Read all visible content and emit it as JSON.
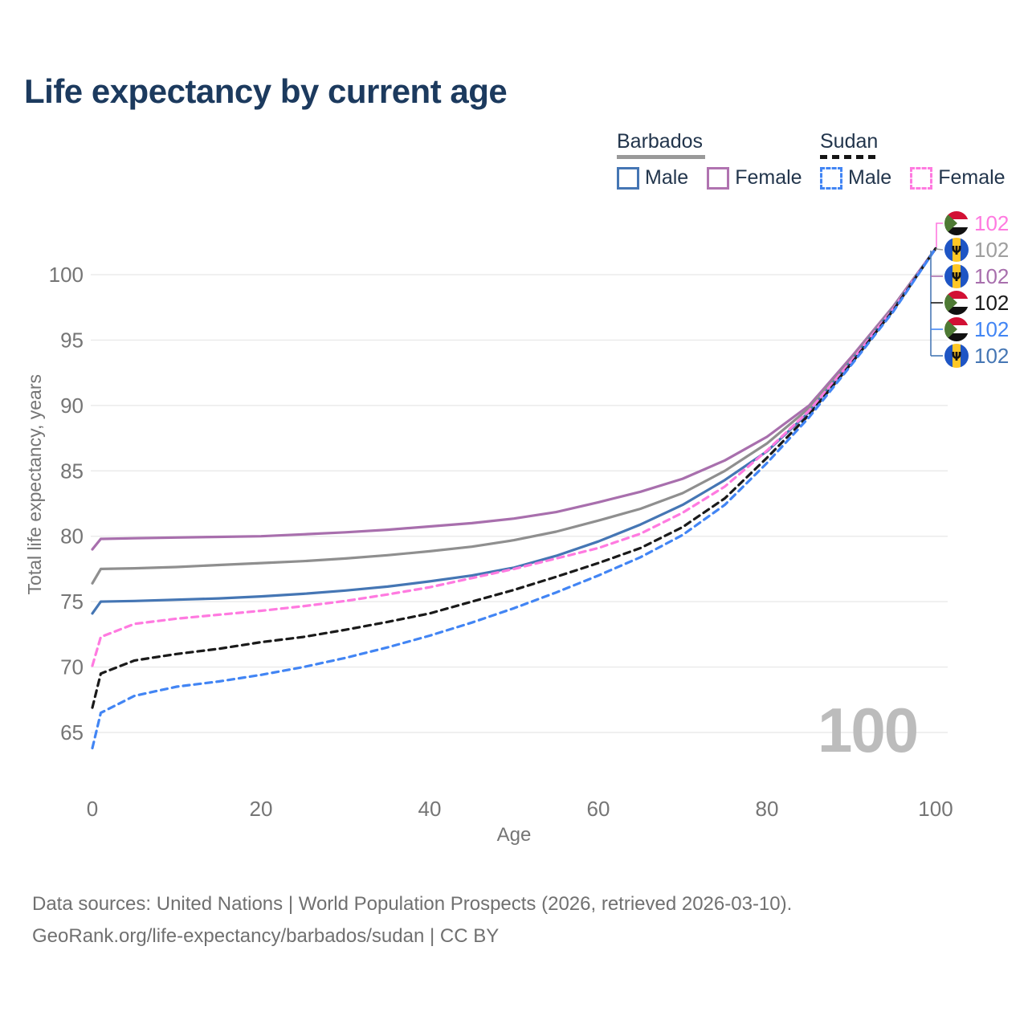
{
  "title": "Life expectancy by current age",
  "legend": {
    "groups": [
      {
        "label": "Barbados",
        "line_style": "solid",
        "underline_color": "#999999",
        "items": [
          {
            "label": "Male",
            "color": "#4576b4",
            "box_style": "solid"
          },
          {
            "label": "Female",
            "color": "#b073b0",
            "box_style": "solid"
          }
        ]
      },
      {
        "label": "Sudan",
        "line_style": "dashed",
        "underline_color": "#151515",
        "items": [
          {
            "label": "Male",
            "color": "#4285f4",
            "box_style": "dashed"
          },
          {
            "label": "Female",
            "color": "#ff7ae0",
            "box_style": "dashed"
          }
        ]
      }
    ]
  },
  "chart_data": {
    "type": "line",
    "title": "Life expectancy by current age",
    "xlabel": "Age",
    "ylabel": "Total life expectancy, years",
    "xlim": [
      0,
      100
    ],
    "ylim": [
      63,
      103
    ],
    "xticks": [
      0,
      20,
      40,
      60,
      80,
      100
    ],
    "yticks": [
      65,
      70,
      75,
      80,
      85,
      90,
      95,
      100
    ],
    "grid": "horizontal",
    "gridline_color": "#e7e7e7",
    "ages": [
      0,
      1,
      5,
      10,
      15,
      20,
      25,
      30,
      35,
      40,
      45,
      50,
      55,
      60,
      65,
      70,
      75,
      80,
      85,
      90,
      95,
      100
    ],
    "series": [
      {
        "id": "barbados-female",
        "name": "Barbados Female",
        "country": "Barbados",
        "sex": "Female",
        "color": "#a86fad",
        "dashed": false,
        "values": [
          79.0,
          79.8,
          79.85,
          79.9,
          79.95,
          80.0,
          80.15,
          80.3,
          80.5,
          80.75,
          81.0,
          81.35,
          81.85,
          82.6,
          83.4,
          84.4,
          85.8,
          87.6,
          90.0,
          93.7,
          97.6,
          102
        ]
      },
      {
        "id": "barbados-all",
        "name": "Barbados",
        "country": "Barbados",
        "sex": "All",
        "color": "#8f8f8f",
        "dashed": false,
        "values": [
          76.4,
          77.5,
          77.55,
          77.65,
          77.8,
          77.95,
          78.1,
          78.3,
          78.55,
          78.85,
          79.2,
          79.7,
          80.35,
          81.2,
          82.1,
          83.3,
          85.0,
          87.1,
          89.8,
          93.5,
          97.5,
          102
        ]
      },
      {
        "id": "barbados-male",
        "name": "Barbados Male",
        "country": "Barbados",
        "sex": "Male",
        "color": "#4576b4",
        "dashed": false,
        "values": [
          74.1,
          75.0,
          75.05,
          75.15,
          75.25,
          75.4,
          75.6,
          75.85,
          76.15,
          76.55,
          77.0,
          77.6,
          78.5,
          79.6,
          80.9,
          82.4,
          84.3,
          86.5,
          89.5,
          93.4,
          97.4,
          102
        ]
      },
      {
        "id": "sudan-female",
        "name": "Sudan Female",
        "country": "Sudan",
        "sex": "Female",
        "color": "#ff7ae0",
        "dashed": true,
        "values": [
          70.1,
          72.3,
          73.3,
          73.7,
          74.0,
          74.3,
          74.65,
          75.05,
          75.55,
          76.1,
          76.8,
          77.5,
          78.3,
          79.1,
          80.2,
          81.8,
          83.8,
          86.55,
          89.6,
          93.4,
          97.4,
          102
        ]
      },
      {
        "id": "sudan-all",
        "name": "Sudan",
        "country": "Sudan",
        "sex": "All",
        "color": "#1a1a1a",
        "dashed": true,
        "values": [
          66.9,
          69.5,
          70.5,
          71.0,
          71.4,
          71.9,
          72.3,
          72.85,
          73.45,
          74.1,
          75.0,
          75.9,
          76.9,
          77.95,
          79.1,
          80.7,
          82.9,
          86.0,
          89.3,
          93.2,
          97.3,
          102
        ]
      },
      {
        "id": "sudan-male",
        "name": "Sudan Male",
        "country": "Sudan",
        "sex": "Male",
        "color": "#4285f4",
        "dashed": true,
        "values": [
          63.8,
          66.5,
          67.8,
          68.5,
          68.9,
          69.4,
          70.0,
          70.7,
          71.5,
          72.4,
          73.4,
          74.5,
          75.7,
          77.0,
          78.4,
          80.1,
          82.4,
          85.6,
          89.1,
          93.1,
          97.2,
          102
        ]
      }
    ],
    "end_labels": [
      {
        "series": "Sudan Female",
        "flag": "sudan",
        "value": "102",
        "color": "#ff7ae0"
      },
      {
        "series": "Barbados",
        "flag": "barbados",
        "value": "102",
        "color": "#9e9e9e"
      },
      {
        "series": "Barbados Female",
        "flag": "barbados",
        "value": "102",
        "color": "#a86fad"
      },
      {
        "series": "Sudan",
        "flag": "sudan",
        "value": "102",
        "color": "#1a1a1a"
      },
      {
        "series": "Sudan Male",
        "flag": "sudan",
        "value": "102",
        "color": "#4285f4"
      },
      {
        "series": "Barbados Male",
        "flag": "barbados",
        "value": "102",
        "color": "#4576b4"
      }
    ],
    "flag_colors": {
      "sudan": {
        "red": "#d21034",
        "white": "#ffffff",
        "black": "#111111",
        "green": "#4e7a34"
      },
      "barbados": {
        "blue": "#1e55c4",
        "yellow": "#ffc726",
        "trident": "#111111"
      }
    }
  },
  "watermark": "100",
  "footer": {
    "line1": "Data sources: United Nations | World Population Prospects (2026, retrieved 2026-03-10).",
    "line2": "GeoRank.org/life-expectancy/barbados/sudan | CC BY"
  }
}
